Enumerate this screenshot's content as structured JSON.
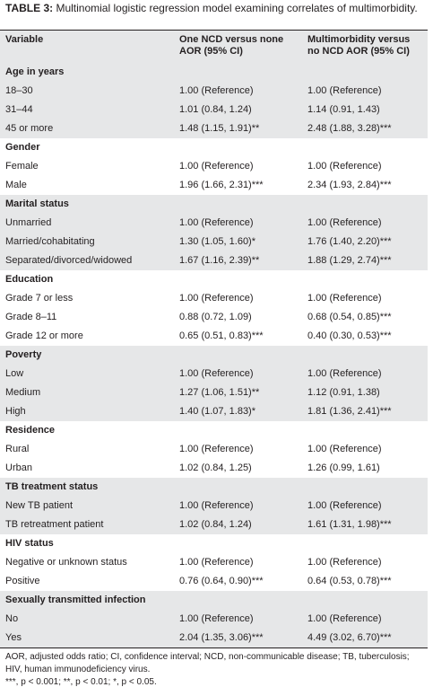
{
  "table": {
    "label": "TABLE 3:",
    "title": "Multinomial logistic regression model examining correlates of multimorbidity.",
    "columns": [
      "Variable",
      "One NCD versus none AOR (95% CI)",
      "Multimorbidity versus no NCD AOR (95% CI)"
    ],
    "sections": [
      {
        "heading": "Age in years",
        "rows": [
          [
            "18–30",
            "1.00 (Reference)",
            "1.00 (Reference)"
          ],
          [
            "31–44",
            "1.01 (0.84, 1.24)",
            "1.14 (0.91, 1.43)"
          ],
          [
            "45 or more",
            "1.48 (1.15, 1.91)**",
            "2.48 (1.88, 3.28)***"
          ]
        ]
      },
      {
        "heading": "Gender",
        "rows": [
          [
            "Female",
            "1.00 (Reference)",
            "1.00 (Reference)"
          ],
          [
            "Male",
            "1.96 (1.66, 2.31)***",
            "2.34 (1.93, 2.84)***"
          ]
        ]
      },
      {
        "heading": "Marital status",
        "rows": [
          [
            "Unmarried",
            "1.00 (Reference)",
            "1.00 (Reference)"
          ],
          [
            "Married/cohabitating",
            "1.30 (1.05, 1.60)*",
            "1.76 (1.40, 2.20)***"
          ],
          [
            "Separated/divorced/widowed",
            "1.67 (1.16, 2.39)**",
            "1.88 (1.29, 2.74)***"
          ]
        ]
      },
      {
        "heading": "Education",
        "rows": [
          [
            "Grade 7 or less",
            "1.00 (Reference)",
            "1.00 (Reference)"
          ],
          [
            "Grade 8–11",
            "0.88 (0.72, 1.09)",
            "0.68 (0.54, 0.85)***"
          ],
          [
            "Grade 12 or more",
            "0.65 (0.51, 0.83)***",
            "0.40 (0.30, 0.53)***"
          ]
        ]
      },
      {
        "heading": "Poverty",
        "rows": [
          [
            "Low",
            "1.00 (Reference)",
            "1.00 (Reference)"
          ],
          [
            "Medium",
            "1.27 (1.06, 1.51)**",
            "1.12 (0.91, 1.38)"
          ],
          [
            "High",
            "1.40 (1.07, 1.83)*",
            "1.81 (1.36, 2.41)***"
          ]
        ]
      },
      {
        "heading": "Residence",
        "rows": [
          [
            "Rural",
            "1.00 (Reference)",
            "1.00 (Reference)"
          ],
          [
            "Urban",
            "1.02 (0.84, 1.25)",
            "1.26 (0.99, 1.61)"
          ]
        ]
      },
      {
        "heading": "TB treatment status",
        "rows": [
          [
            "New TB patient",
            "1.00 (Reference)",
            "1.00 (Reference)"
          ],
          [
            "TB retreatment patient",
            "1.02 (0.84, 1.24)",
            "1.61 (1.31, 1.98)***"
          ]
        ]
      },
      {
        "heading": "HIV status",
        "rows": [
          [
            "Negative or unknown status",
            "1.00 (Reference)",
            "1.00 (Reference)"
          ],
          [
            "Positive",
            "0.76 (0.64, 0.90)***",
            "0.64 (0.53, 0.78)***"
          ]
        ]
      },
      {
        "heading": "Sexually transmitted infection",
        "rows": [
          [
            "No",
            "1.00 (Reference)",
            "1.00 (Reference)"
          ],
          [
            "Yes",
            "2.04 (1.35, 3.06)***",
            "4.49 (3.02, 6.70)***"
          ]
        ]
      }
    ],
    "notes": [
      "AOR, adjusted odds ratio; CI, confidence interval; NCD, non-communicable disease; TB, tuberculosis; HIV, human immunodeficiency virus.",
      "***, p < 0.001; **, p < 0.01; *, p < 0.05."
    ]
  }
}
